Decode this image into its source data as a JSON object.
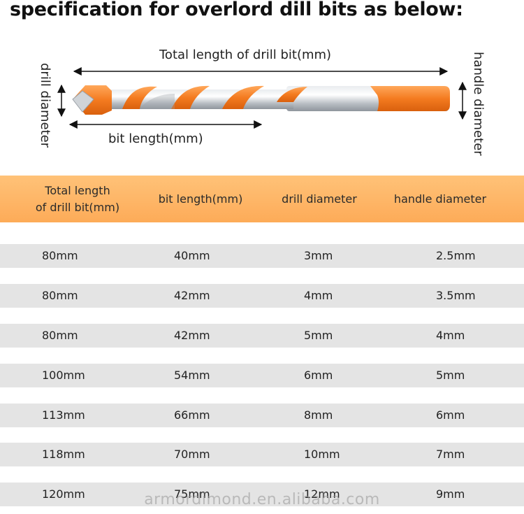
{
  "title": "specification for overlord dill bits as below:",
  "diagram": {
    "total_length_label": "Total length of drill bit(mm)",
    "bit_length_label": "bit length(mm)",
    "drill_diameter_label": "drill diameter",
    "handle_diameter_label": "handle diameter",
    "colors": {
      "orange": "#f47b20",
      "steel": "#c8ccd0"
    }
  },
  "table": {
    "headers": {
      "total_line1": "Total length",
      "total_line2": "of drill bit(mm)",
      "bit_length": "bit length(mm)",
      "drill_diameter": "drill diameter",
      "handle_diameter": "handle diameter"
    },
    "rows": [
      {
        "total": "80mm",
        "bit": "40mm",
        "drill": "3mm",
        "handle": "2.5mm"
      },
      {
        "total": "80mm",
        "bit": "42mm",
        "drill": "4mm",
        "handle": "3.5mm"
      },
      {
        "total": "80mm",
        "bit": "42mm",
        "drill": "5mm",
        "handle": "4mm"
      },
      {
        "total": "100mm",
        "bit": "54mm",
        "drill": "6mm",
        "handle": "5mm"
      },
      {
        "total": "113mm",
        "bit": "66mm",
        "drill": "8mm",
        "handle": "6mm"
      },
      {
        "total": "118mm",
        "bit": "70mm",
        "drill": "10mm",
        "handle": "7mm"
      },
      {
        "total": "120mm",
        "bit": "75mm",
        "drill": "12mm",
        "handle": "9mm"
      }
    ],
    "header_color": "#fdab58",
    "row_color": "#e4e4e4"
  },
  "watermark": "armordimond.en.alibaba.com"
}
